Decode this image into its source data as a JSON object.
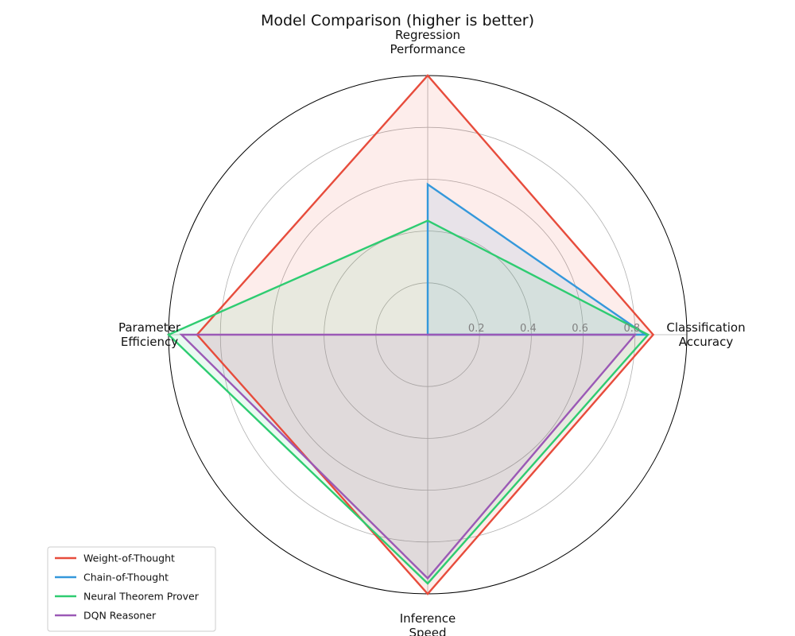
{
  "chart_data": {
    "type": "radar",
    "title": "Model Comparison (higher is better)",
    "axes": [
      {
        "label_lines": [
          "Classification",
          "Accuracy"
        ]
      },
      {
        "label_lines": [
          "Regression",
          "Performance"
        ]
      },
      {
        "label_lines": [
          "Parameter",
          "Efficiency"
        ]
      },
      {
        "label_lines": [
          "Inference",
          "Speed"
        ]
      }
    ],
    "rlim": [
      0,
      1
    ],
    "rticks": [
      0.2,
      0.4,
      0.6,
      0.8
    ],
    "rtick_labels": [
      "0.2",
      "0.4",
      "0.6",
      "0.8"
    ],
    "grid": true,
    "legend_position": "lower-left",
    "series": [
      {
        "name": "Weight-of-Thought",
        "color": "#e74c3c",
        "values": [
          0.87,
          1.0,
          0.89,
          1.0
        ]
      },
      {
        "name": "Chain-of-Thought",
        "color": "#3498db",
        "values": [
          0.84,
          0.58,
          0.0,
          0.0
        ]
      },
      {
        "name": "Neural Theorem Prover",
        "color": "#2ecc71",
        "values": [
          0.85,
          0.44,
          1.0,
          0.96
        ]
      },
      {
        "name": "DQN Reasoner",
        "color": "#9b59b6",
        "values": [
          0.8,
          0.0,
          0.95,
          0.94
        ]
      }
    ]
  }
}
